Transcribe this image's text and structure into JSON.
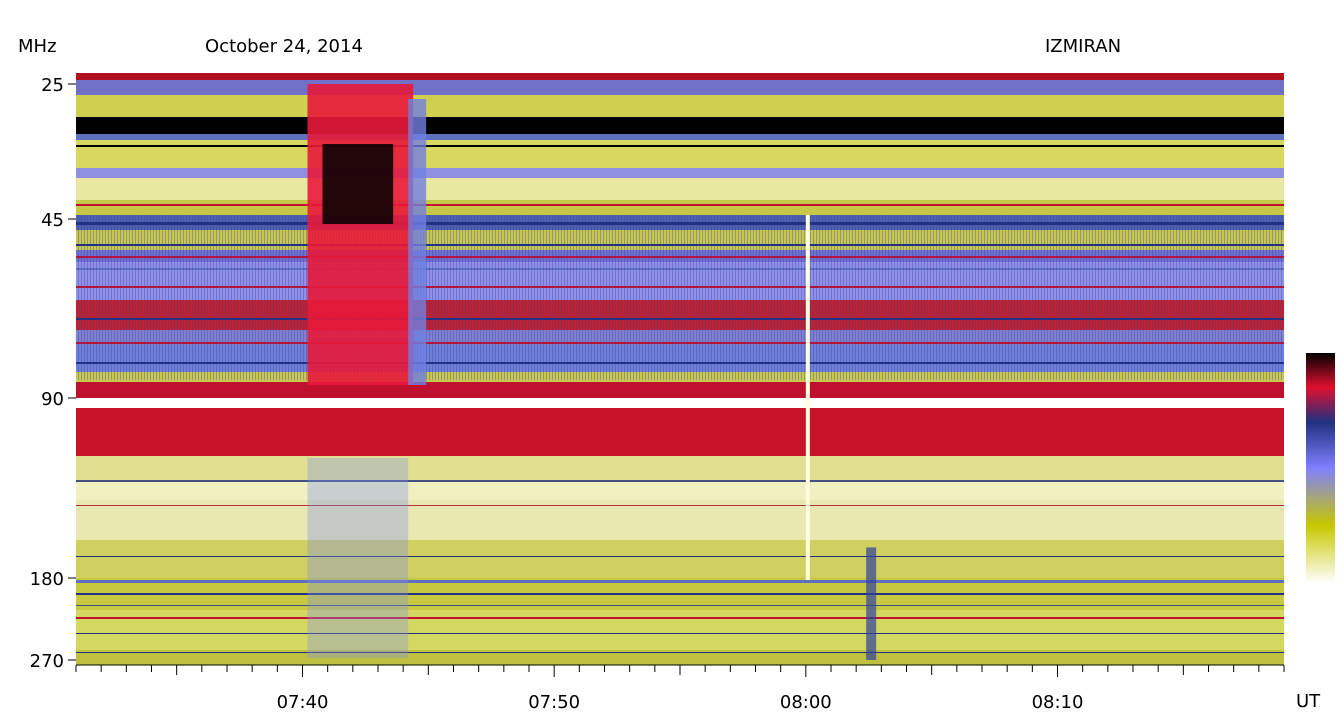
{
  "chart_data": {
    "type": "heatmap",
    "title": "October 24, 2014",
    "station": "IZMIRAN",
    "ylabel": "MHz",
    "xlabel": "UT",
    "y_ticks": [
      25,
      45,
      90,
      180,
      270
    ],
    "x_ticks": [
      "07:40",
      "07:50",
      "08:00",
      "08:10"
    ],
    "x_range": [
      "07:31",
      "08:19"
    ],
    "y_range": [
      25,
      270
    ],
    "y_scale": "log",
    "colormap": [
      "#ffffff",
      "#c8c800",
      "#8080ff",
      "#203080",
      "#e01030",
      "#000000"
    ],
    "events": [
      {
        "type": "burst",
        "start": "07:40",
        "end": "07:44",
        "f_low": 25,
        "f_high": 90
      },
      {
        "type": "burst",
        "start": "08:02",
        "end": "08:03",
        "f_low": 160,
        "f_high": 270
      }
    ]
  }
}
